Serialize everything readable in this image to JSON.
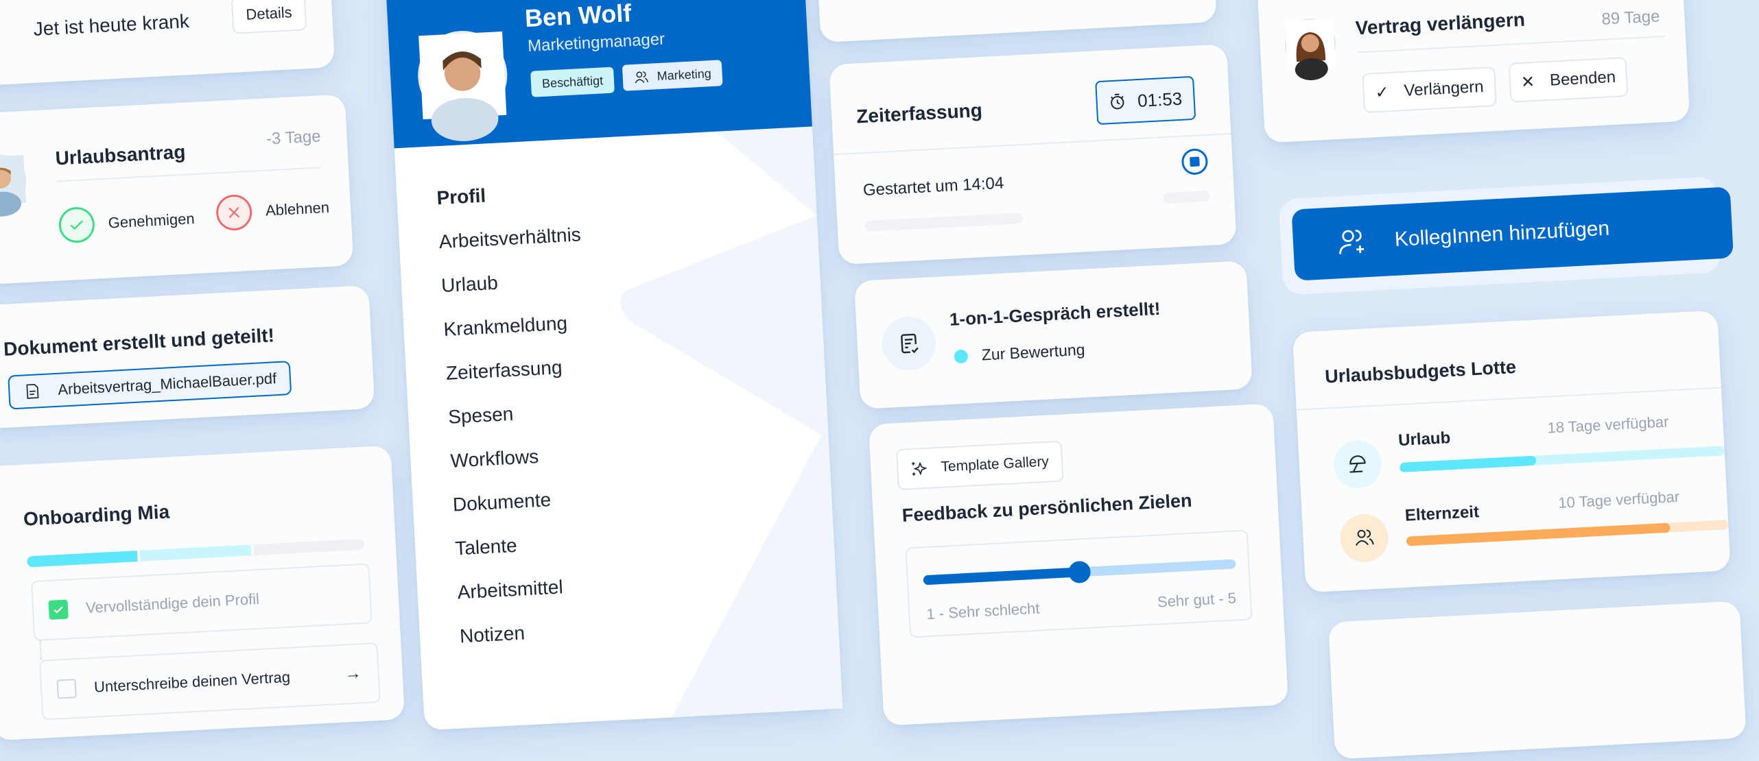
{
  "colors": {
    "brand_blue": "#0068c9",
    "cyan": "#5ee6fd",
    "cyan_light": "#c9f5fd",
    "orange": "#fdab5b",
    "green": "#3ddc84",
    "red": "#ef6b6b",
    "background": "#dae8f8"
  },
  "sick_card": {
    "icon": "medical-cross-icon",
    "text": "Jet ist heute krank",
    "details_button": "Details"
  },
  "leave_request": {
    "title": "Urlaubsantrag",
    "days": "-3 Tage",
    "approve": "Genehmigen",
    "reject": "Ablehnen"
  },
  "document_card": {
    "title": "Dokument erstellt und geteilt!",
    "file": "Arbeitsvertrag_MichaelBauer.pdf",
    "icon": "document-icon"
  },
  "onboarding": {
    "title": "Onboarding Mia",
    "progress_segments": [
      "done",
      "current",
      "todo"
    ],
    "tasks": [
      {
        "label": "Vervollständige dein Profil",
        "done": true
      },
      {
        "label": "Unterschreibe deinen Vertrag",
        "done": false
      }
    ]
  },
  "profile": {
    "name": "Ben Wolf",
    "role": "Marketingmanager",
    "status_badge": "Beschäftigt",
    "team_badge": "Marketing",
    "nav": [
      "Profil",
      "Arbeitsverhältnis",
      "Urlaub",
      "Krankmeldung",
      "Zeiterfassung",
      "Spesen",
      "Workflows",
      "Dokumente",
      "Talente",
      "Arbeitsmittel",
      "Notizen"
    ],
    "active_nav": "Profil"
  },
  "time_tracking": {
    "title": "Zeiterfassung",
    "timer": "01:53",
    "started": "Gestartet um 14:04"
  },
  "one_on_one": {
    "title": "1-on-1-Gespräch erstellt!",
    "status": "Zur Bewertung"
  },
  "feedback": {
    "gallery_button": "Template Gallery",
    "title": "Feedback zu persönlichen Zielen",
    "min_label": "1 - Sehr schlecht",
    "max_label": "Sehr gut - 5",
    "slider_value": 3,
    "slider_min": 1,
    "slider_max": 5
  },
  "contract": {
    "title": "Vertrag verlängern",
    "days": "89 Tage",
    "extend": "Verlängern",
    "end": "Beenden"
  },
  "add_colleagues": {
    "label": "KollegInnen hinzufügen"
  },
  "budgets": {
    "title": "Urlaubsbudgets Lotte",
    "items": [
      {
        "label": "Urlaub",
        "available": "18 Tage verfügbar",
        "fill": 0.42,
        "icon": "beach-umbrella-icon"
      },
      {
        "label": "Elternzeit",
        "available": "10 Tage verfügbar",
        "fill": 0.82,
        "icon": "family-icon"
      }
    ]
  }
}
